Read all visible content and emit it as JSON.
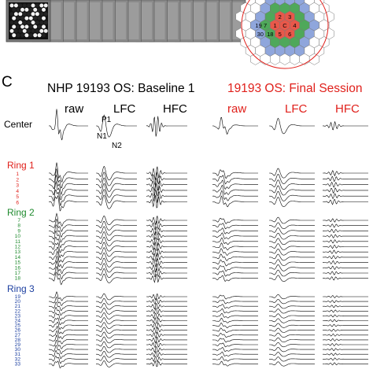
{
  "panel_label": "C",
  "baseline": {
    "title": "NHP 19193 OS: Baseline 1",
    "columns": [
      "raw",
      "LFC",
      "HFC"
    ],
    "waveform_labels": [
      "P1",
      "N1",
      "N2"
    ]
  },
  "final": {
    "title": "19193 OS: Final Session",
    "columns": [
      "raw",
      "LFC",
      "HFC"
    ]
  },
  "row_labels": {
    "center": "Center",
    "ring1": "Ring 1",
    "ring2": "Ring 2",
    "ring3": "Ring 3"
  },
  "ring1_numbers": [
    "1",
    "2",
    "3",
    "4",
    "5",
    "6"
  ],
  "ring2_numbers": [
    "7",
    "8",
    "9",
    "10",
    "11",
    "12",
    "13",
    "14",
    "15",
    "16",
    "17",
    "18"
  ],
  "ring3_numbers": [
    "19",
    "20",
    "21",
    "22",
    "23",
    "24",
    "25",
    "26",
    "27",
    "28",
    "29",
    "30",
    "31",
    "32",
    "33"
  ],
  "hex_map_labels": {
    "center": "C",
    "ring1": [
      "2",
      "3",
      "1",
      "4",
      "5",
      "6"
    ],
    "ring2_partial": [
      "19",
      "7",
      "30",
      "18"
    ]
  },
  "colors": {
    "title_baseline": "#000000",
    "title_final": "#e0201b",
    "ring1": "#e0201b",
    "ring2": "#1f8a2e",
    "ring3": "#1c3fa0",
    "hex_red": "#e8584a",
    "hex_green": "#4fa85a",
    "hex_blue": "#8fa6dc",
    "circle": "#e0201b"
  }
}
